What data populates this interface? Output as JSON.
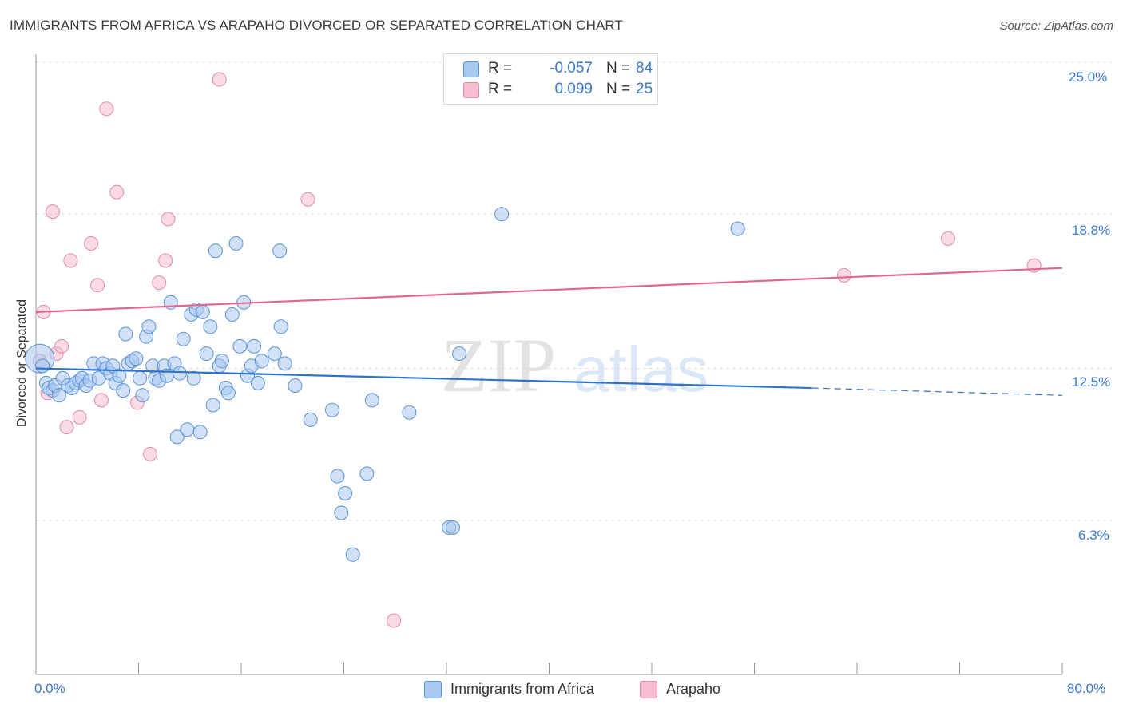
{
  "header": {
    "title": "IMMIGRANTS FROM AFRICA VS ARAPAHO DIVORCED OR SEPARATED CORRELATION CHART",
    "source": "Source: ZipAtlas.com"
  },
  "watermark": {
    "part1": "ZIP",
    "part2": "atlas"
  },
  "legend": {
    "rows": [
      {
        "r_label": "R =",
        "r_value": "-0.057",
        "n_label": "N =",
        "n_value": "84",
        "color": "#a9c8f0"
      },
      {
        "r_label": "R =",
        "r_value": "0.099",
        "n_label": "N =",
        "n_value": "25",
        "color": "#f6bcd0"
      }
    ]
  },
  "bottom_legend": {
    "africa": "Immigrants from Africa",
    "arapaho": "Arapaho"
  },
  "axes": {
    "y_label": "Divorced or Separated",
    "y_ticks": [
      "25.0%",
      "18.8%",
      "12.5%",
      "6.3%"
    ],
    "x_min_label": "0.0%",
    "x_max_label": "80.0%"
  },
  "colors": {
    "africa_fill": "#a9c8f0",
    "africa_stroke": "#5b93d6",
    "africa_line": "#2f72c9",
    "arapaho_fill": "#f6bcd0",
    "arapaho_stroke": "#e58aa8",
    "arapaho_line": "#e2658f",
    "tick_text": "#3a78c9"
  },
  "chart_data": {
    "type": "scatter",
    "title": "IMMIGRANTS FROM AFRICA VS ARAPAHO DIVORCED OR SEPARATED CORRELATION CHART",
    "xlabel": "",
    "ylabel": "Divorced or Separated",
    "xlim": [
      0,
      80
    ],
    "ylim": [
      0,
      25.5
    ],
    "y_ticks": [
      6.3,
      12.5,
      18.8,
      25.0
    ],
    "grid": "horizontal dashed",
    "legend_placement": "top-center",
    "series": [
      {
        "name": "Immigrants from Africa",
        "r": -0.057,
        "n": 84,
        "trend": {
          "x": [
            0,
            60.5
          ],
          "y": [
            12.5,
            11.7
          ],
          "dashed_to": [
            80,
            11.4
          ]
        },
        "points": [
          [
            0.3,
            12.9
          ],
          [
            0.5,
            12.6
          ],
          [
            0.8,
            11.9
          ],
          [
            1.0,
            11.7
          ],
          [
            1.3,
            11.6
          ],
          [
            1.5,
            11.8
          ],
          [
            1.8,
            11.4
          ],
          [
            2.1,
            12.1
          ],
          [
            2.5,
            11.8
          ],
          [
            2.8,
            11.7
          ],
          [
            3.1,
            11.9
          ],
          [
            3.4,
            12.0
          ],
          [
            3.6,
            12.1
          ],
          [
            3.9,
            11.8
          ],
          [
            4.2,
            12.0
          ],
          [
            4.5,
            12.7
          ],
          [
            4.9,
            12.1
          ],
          [
            5.2,
            12.7
          ],
          [
            5.5,
            12.5
          ],
          [
            5.8,
            12.3
          ],
          [
            6.0,
            12.6
          ],
          [
            6.2,
            11.9
          ],
          [
            6.5,
            12.2
          ],
          [
            6.8,
            11.6
          ],
          [
            7.0,
            13.9
          ],
          [
            7.2,
            12.7
          ],
          [
            7.5,
            12.8
          ],
          [
            7.8,
            12.9
          ],
          [
            8.1,
            12.1
          ],
          [
            8.3,
            11.4
          ],
          [
            8.6,
            13.8
          ],
          [
            8.8,
            14.2
          ],
          [
            9.1,
            12.6
          ],
          [
            9.3,
            12.1
          ],
          [
            9.6,
            12.0
          ],
          [
            10.0,
            12.6
          ],
          [
            10.2,
            12.2
          ],
          [
            10.5,
            15.2
          ],
          [
            10.8,
            12.7
          ],
          [
            11.0,
            9.7
          ],
          [
            11.2,
            12.3
          ],
          [
            11.5,
            13.7
          ],
          [
            11.8,
            10.0
          ],
          [
            12.1,
            14.7
          ],
          [
            12.3,
            12.1
          ],
          [
            12.5,
            14.9
          ],
          [
            12.8,
            9.9
          ],
          [
            13.0,
            14.8
          ],
          [
            13.3,
            13.1
          ],
          [
            13.6,
            14.2
          ],
          [
            13.8,
            11.0
          ],
          [
            14.0,
            17.3
          ],
          [
            14.3,
            12.6
          ],
          [
            14.5,
            12.8
          ],
          [
            14.8,
            11.7
          ],
          [
            15.0,
            11.5
          ],
          [
            15.3,
            14.7
          ],
          [
            15.6,
            17.6
          ],
          [
            15.9,
            13.4
          ],
          [
            16.2,
            15.2
          ],
          [
            16.5,
            12.2
          ],
          [
            16.8,
            12.6
          ],
          [
            17.0,
            13.4
          ],
          [
            17.3,
            11.9
          ],
          [
            17.6,
            12.8
          ],
          [
            18.6,
            13.1
          ],
          [
            19.0,
            17.3
          ],
          [
            19.4,
            12.7
          ],
          [
            19.1,
            14.2
          ],
          [
            20.2,
            11.8
          ],
          [
            21.4,
            10.4
          ],
          [
            23.1,
            10.8
          ],
          [
            23.5,
            8.1
          ],
          [
            23.8,
            6.6
          ],
          [
            24.1,
            7.4
          ],
          [
            24.7,
            4.9
          ],
          [
            25.8,
            8.2
          ],
          [
            26.2,
            11.2
          ],
          [
            29.1,
            10.7
          ],
          [
            32.2,
            6.0
          ],
          [
            32.5,
            6.0
          ],
          [
            33.0,
            13.1
          ],
          [
            36.3,
            18.8
          ],
          [
            54.7,
            18.2
          ]
        ]
      },
      {
        "name": "Arapaho",
        "r": 0.099,
        "n": 25,
        "trend": {
          "x": [
            0,
            80
          ],
          "y": [
            14.8,
            16.6
          ]
        },
        "points": [
          [
            0.3,
            12.8
          ],
          [
            0.6,
            14.8
          ],
          [
            0.9,
            11.5
          ],
          [
            1.3,
            18.9
          ],
          [
            1.6,
            13.1
          ],
          [
            2.0,
            13.4
          ],
          [
            2.4,
            10.1
          ],
          [
            2.7,
            16.9
          ],
          [
            3.4,
            10.5
          ],
          [
            4.3,
            17.6
          ],
          [
            4.8,
            15.9
          ],
          [
            5.1,
            11.2
          ],
          [
            5.5,
            23.1
          ],
          [
            6.3,
            19.7
          ],
          [
            7.9,
            11.1
          ],
          [
            8.9,
            9.0
          ],
          [
            9.6,
            16.0
          ],
          [
            10.1,
            16.9
          ],
          [
            10.3,
            18.6
          ],
          [
            14.3,
            24.3
          ],
          [
            21.2,
            19.4
          ],
          [
            27.9,
            2.2
          ],
          [
            63.0,
            16.3
          ],
          [
            71.1,
            17.8
          ],
          [
            77.8,
            16.7
          ]
        ]
      }
    ]
  }
}
